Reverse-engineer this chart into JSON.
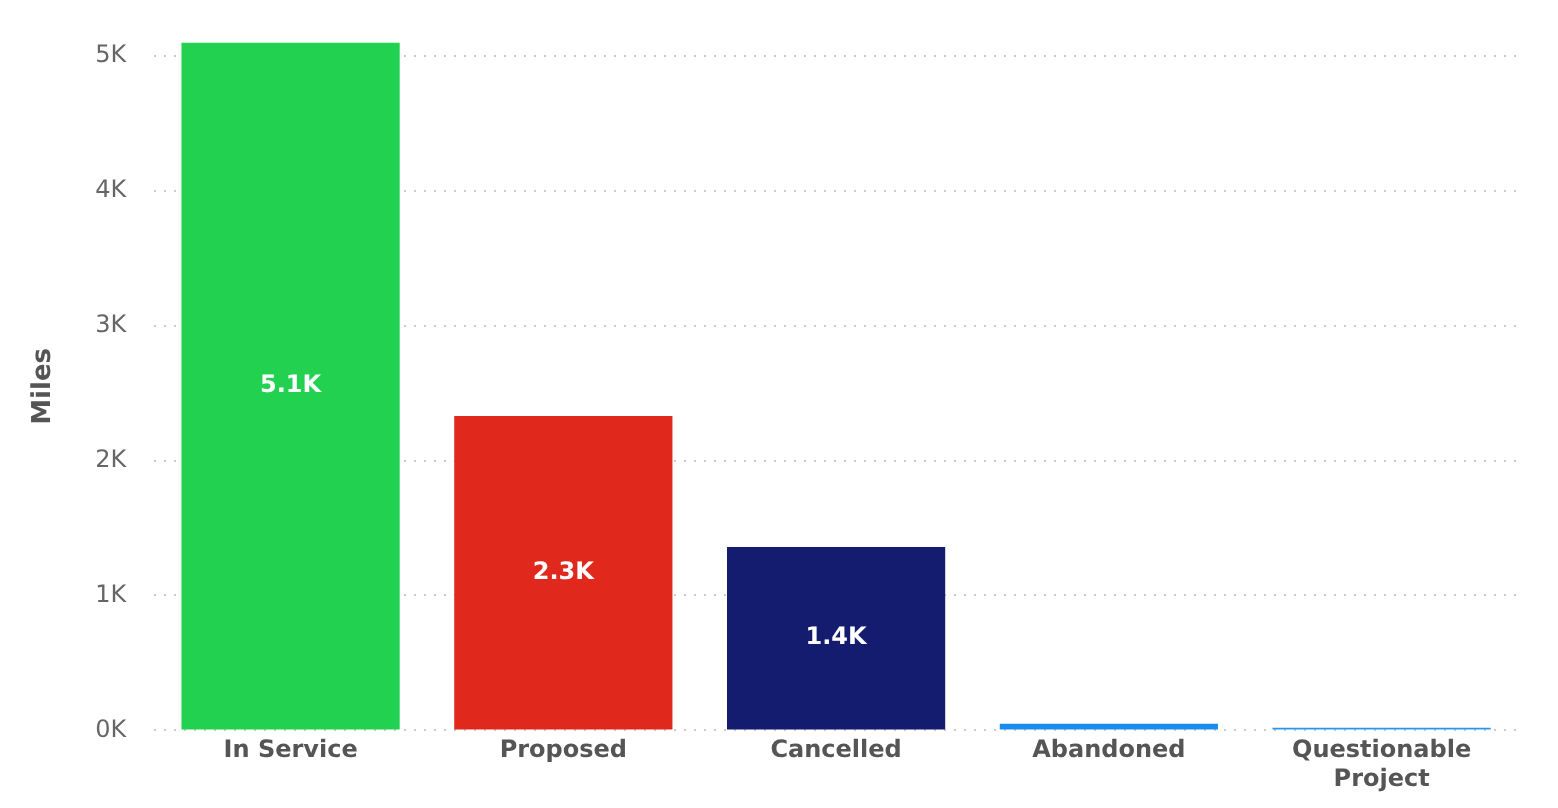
{
  "chart_data": {
    "type": "bar",
    "ylabel": "Miles",
    "categories": [
      "In Service",
      "Proposed",
      "Cancelled",
      "Abandoned",
      "Questionable Project"
    ],
    "values": [
      5100,
      2330,
      1360,
      50,
      20
    ],
    "colors": [
      "#22d150",
      "#e0291c",
      "#131c6e",
      "#1a8cf0",
      "#2a95f2"
    ],
    "value_labels": [
      "5.1K",
      "2.3K",
      "1.4K",
      null,
      null
    ],
    "ylim": [
      0,
      5100
    ],
    "yticks": [
      {
        "value": 0,
        "label": "0K"
      },
      {
        "value": 1000,
        "label": "1K"
      },
      {
        "value": 2000,
        "label": "2K"
      },
      {
        "value": 3000,
        "label": "3K"
      },
      {
        "value": 4000,
        "label": "4K"
      },
      {
        "value": 5000,
        "label": "5K"
      }
    ],
    "grid": "y"
  }
}
